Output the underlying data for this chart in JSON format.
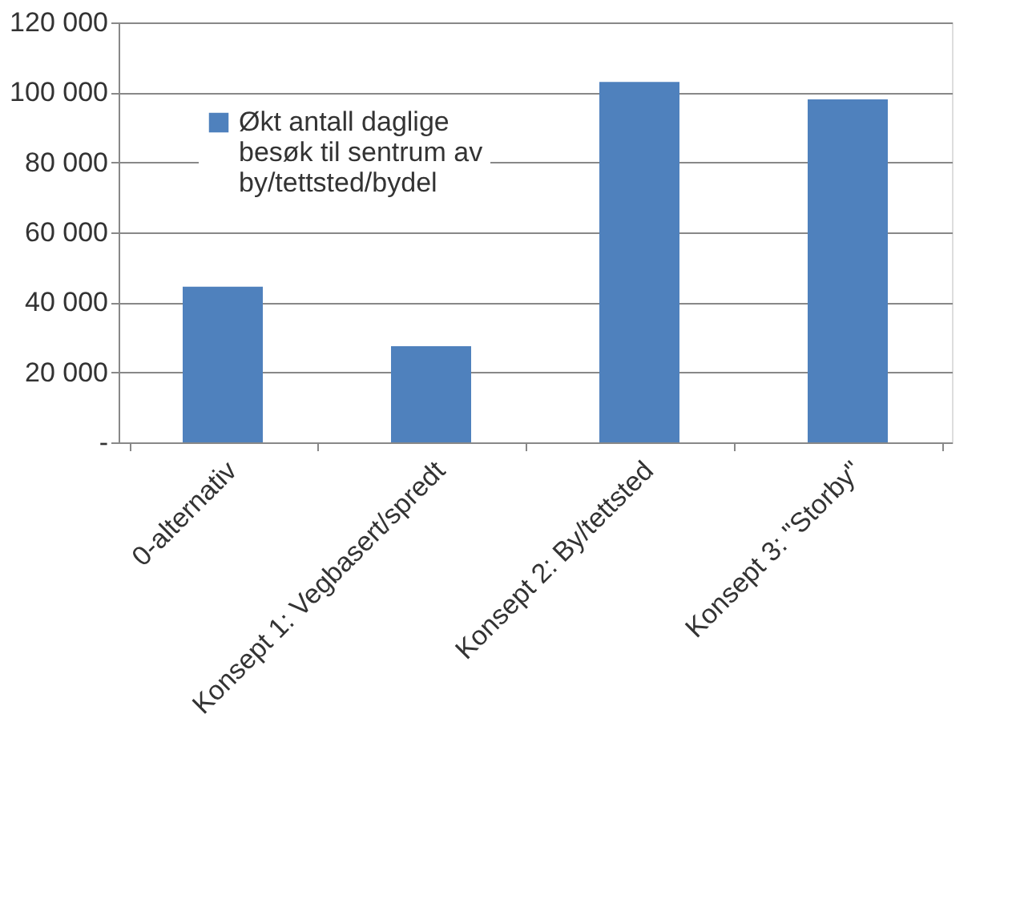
{
  "chart_data": {
    "type": "bar",
    "categories": [
      "0-alternativ",
      "Konsept 1: Vegbasert/spredt",
      "Konsept 2: By/tettsted",
      "Konsept 3: \"Storby\""
    ],
    "series": [
      {
        "name": "Økt antall daglige besøk til sentrum av by/tettsted/bydel",
        "color": "#4f81bd",
        "values": [
          44500,
          27500,
          103000,
          98000
        ]
      }
    ],
    "ylim": [
      0,
      120000
    ],
    "yticks": [
      {
        "value": 0,
        "label": "-"
      },
      {
        "value": 20000,
        "label": "20 000"
      },
      {
        "value": 40000,
        "label": "40 000"
      },
      {
        "value": 60000,
        "label": "60 000"
      },
      {
        "value": 80000,
        "label": "80 000"
      },
      {
        "value": 100000,
        "label": "100 000"
      },
      {
        "value": 120000,
        "label": "120 000"
      }
    ],
    "grid": "y",
    "legend": "top left"
  }
}
